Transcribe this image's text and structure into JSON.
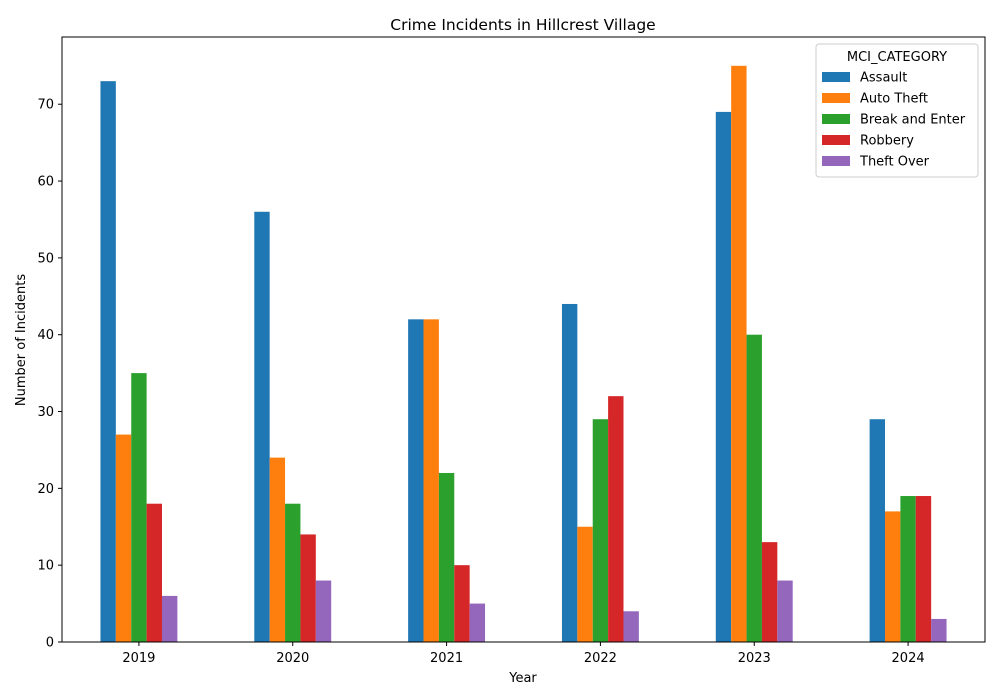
{
  "chart_data": {
    "type": "bar",
    "title": "Crime Incidents in Hillcrest Village",
    "xlabel": "Year",
    "ylabel": "Number of Incidents",
    "categories": [
      "2019",
      "2020",
      "2021",
      "2022",
      "2023",
      "2024"
    ],
    "ylim": [
      0,
      78.75
    ],
    "yticks": [
      0,
      10,
      20,
      30,
      40,
      50,
      60,
      70
    ],
    "grid": false,
    "legend": {
      "title": "MCI_CATEGORY",
      "placement": "top-right"
    },
    "series": [
      {
        "name": "Assault",
        "color": "#1f77b4",
        "values": [
          73,
          56,
          42,
          44,
          69,
          29
        ]
      },
      {
        "name": "Auto Theft",
        "color": "#ff7f0e",
        "values": [
          27,
          24,
          42,
          15,
          75,
          17
        ]
      },
      {
        "name": "Break and Enter",
        "color": "#2ca02c",
        "values": [
          35,
          18,
          22,
          29,
          40,
          19
        ]
      },
      {
        "name": "Robbery",
        "color": "#d62728",
        "values": [
          18,
          14,
          10,
          32,
          13,
          19
        ]
      },
      {
        "name": "Theft Over",
        "color": "#9467bd",
        "values": [
          6,
          8,
          5,
          4,
          8,
          3
        ]
      }
    ]
  }
}
